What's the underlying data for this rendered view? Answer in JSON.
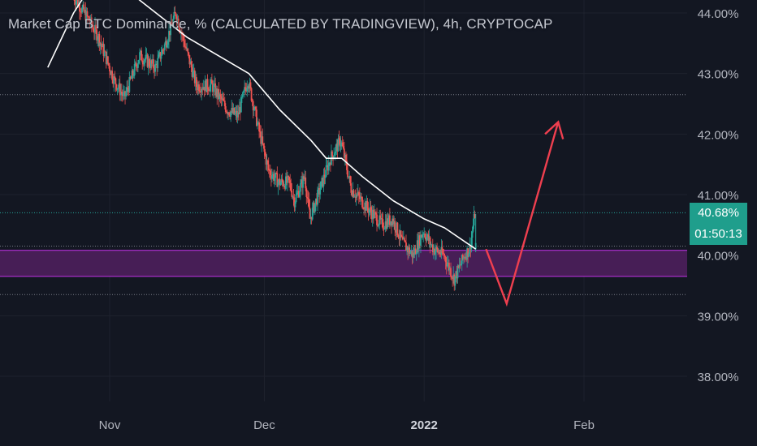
{
  "ticker": {
    "title": "Market Cap BTC Dominance, % (CALCULATED BY TRADINGVIEW), 4h, CRYPTOCAP"
  },
  "price": {
    "current": "40.68%",
    "countdown": "01:50:13"
  },
  "colors": {
    "background": "#131722",
    "up": "#26a69a",
    "down": "#ef5350",
    "ma": "#ffffff",
    "zone_fill": "#4a1f5a",
    "zone_border": "#b32fd6",
    "arrow": "#ef3f4f",
    "label": "#b2b5be"
  },
  "chart_data": {
    "type": "candlestick",
    "title": "Market Cap BTC Dominance, % (CALCULATED BY TRADINGVIEW), 4h, CRYPTOCAP",
    "y_axis": {
      "ticks": [
        "44.00%",
        "43.00%",
        "42.00%",
        "41.00%",
        "40.00%",
        "39.00%",
        "38.00%"
      ],
      "tick_values": [
        44,
        43,
        42,
        41,
        40,
        39,
        38
      ],
      "range": [
        37.3,
        44.2
      ]
    },
    "x_axis": {
      "ticks": [
        "Nov",
        "Dec",
        "2022",
        "Feb"
      ],
      "tick_dates": [
        "2021-11-01",
        "2021-12-01",
        "2022-01-01",
        "2022-02-01"
      ],
      "range": [
        "2021-10-20",
        "2022-02-20"
      ]
    },
    "last_price": 40.68,
    "price_series": [
      [
        "2021-10-25",
        44.3
      ],
      [
        "2021-10-28",
        43.9
      ],
      [
        "2021-10-30",
        43.6
      ],
      [
        "2021-11-02",
        42.9
      ],
      [
        "2021-11-04",
        42.6
      ],
      [
        "2021-11-07",
        43.3
      ],
      [
        "2021-11-10",
        43.1
      ],
      [
        "2021-11-12",
        43.5
      ],
      [
        "2021-11-14",
        44.0
      ],
      [
        "2021-11-16",
        43.4
      ],
      [
        "2021-11-18",
        42.8
      ],
      [
        "2021-11-21",
        42.8
      ],
      [
        "2021-11-24",
        42.4
      ],
      [
        "2021-11-26",
        42.3
      ],
      [
        "2021-11-28",
        42.9
      ],
      [
        "2021-11-30",
        42.1
      ],
      [
        "2021-12-02",
        41.4
      ],
      [
        "2021-12-04",
        41.2
      ],
      [
        "2021-12-06",
        41.2
      ],
      [
        "2021-12-07",
        40.9
      ],
      [
        "2021-12-09",
        41.3
      ],
      [
        "2021-12-10",
        40.6
      ],
      [
        "2021-12-12",
        41.1
      ],
      [
        "2021-12-14",
        41.6
      ],
      [
        "2021-12-16",
        41.9
      ],
      [
        "2021-12-18",
        41.1
      ],
      [
        "2021-12-20",
        40.9
      ],
      [
        "2021-12-22",
        40.7
      ],
      [
        "2021-12-24",
        40.5
      ],
      [
        "2021-12-26",
        40.6
      ],
      [
        "2021-12-28",
        40.2
      ],
      [
        "2021-12-30",
        40.0
      ],
      [
        "2022-01-01",
        40.4
      ],
      [
        "2022-01-03",
        40.1
      ],
      [
        "2022-01-05",
        40.0
      ],
      [
        "2022-01-07",
        39.6
      ],
      [
        "2022-01-09",
        40.0
      ],
      [
        "2022-01-10",
        40.1
      ],
      [
        "2022-01-11",
        40.68
      ]
    ],
    "moving_average": [
      [
        "2021-10-20",
        43.1
      ],
      [
        "2021-10-25",
        44.0
      ],
      [
        "2021-10-28",
        44.4
      ],
      [
        "2021-11-04",
        44.4
      ],
      [
        "2021-11-10",
        44.0
      ],
      [
        "2021-11-16",
        43.6
      ],
      [
        "2021-11-22",
        43.3
      ],
      [
        "2021-11-28",
        43.0
      ],
      [
        "2021-12-04",
        42.4
      ],
      [
        "2021-12-10",
        41.9
      ],
      [
        "2021-12-13",
        41.6
      ],
      [
        "2021-12-16",
        41.6
      ],
      [
        "2021-12-20",
        41.3
      ],
      [
        "2021-12-26",
        40.9
      ],
      [
        "2022-01-01",
        40.6
      ],
      [
        "2022-01-05",
        40.45
      ],
      [
        "2022-01-11",
        40.1
      ]
    ],
    "support_zone": [
      39.65,
      40.08
    ],
    "horizontal_levels": [
      42.65,
      40.7,
      40.15,
      39.35
    ],
    "projection": {
      "points": [
        [
          "2022-01-13",
          40.1
        ],
        [
          "2022-01-17",
          39.2
        ],
        [
          "2022-01-27",
          42.2
        ]
      ],
      "arrow_head_side": "end"
    }
  }
}
